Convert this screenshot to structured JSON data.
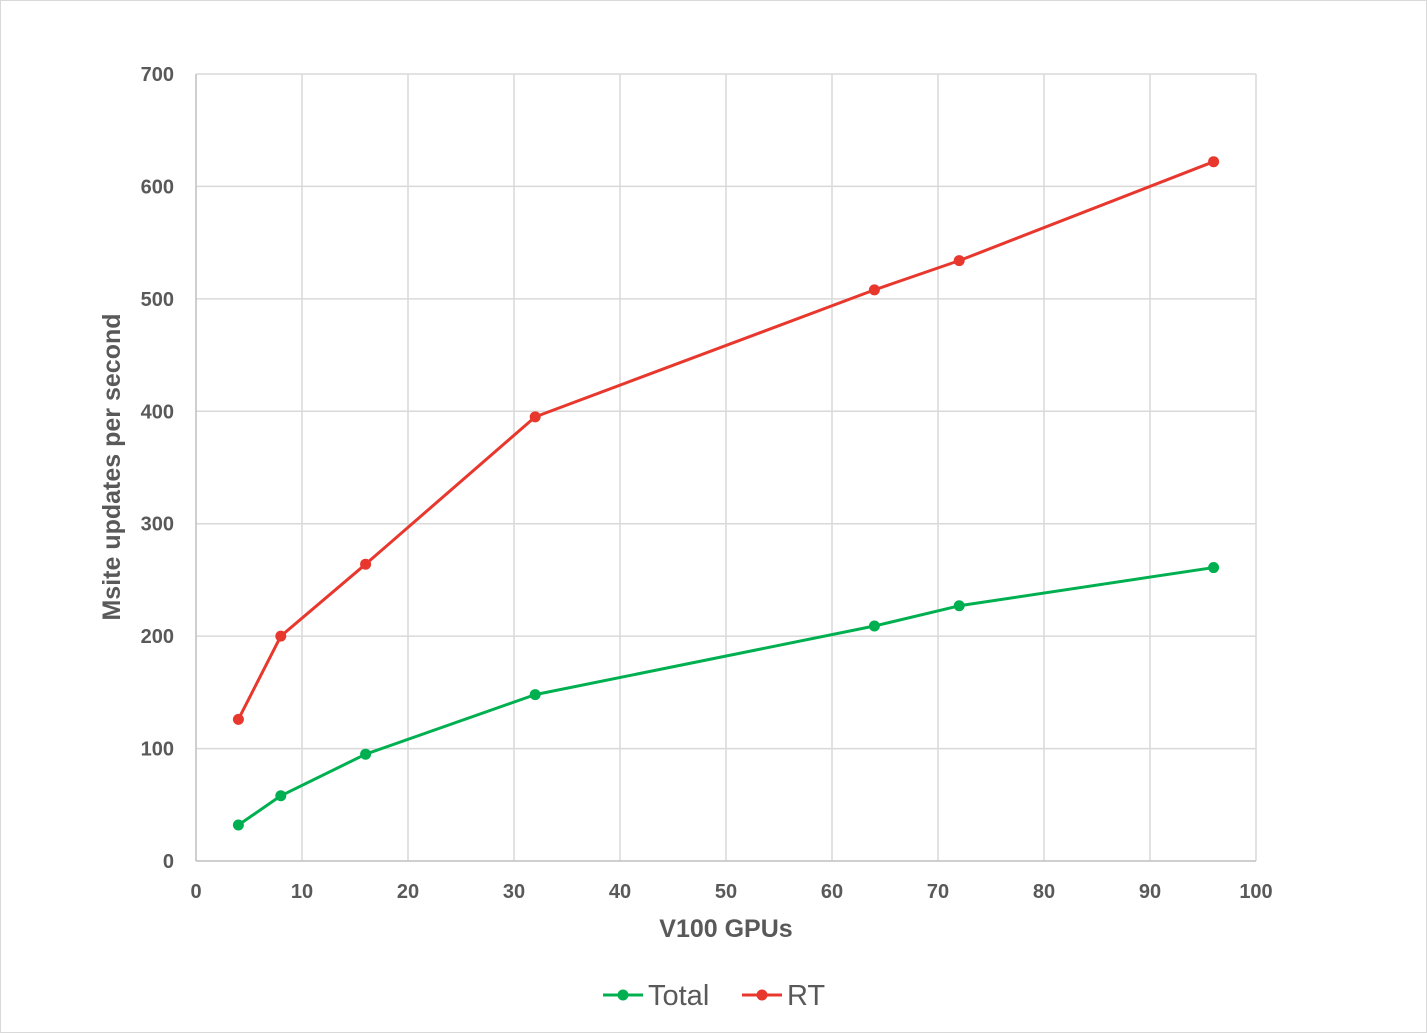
{
  "chart_data": {
    "type": "line",
    "title": "",
    "xlabel": "V100 GPUs",
    "ylabel": "Msite updates per second",
    "xlim": [
      0,
      100
    ],
    "ylim": [
      0,
      700
    ],
    "x_ticks": [
      0,
      10,
      20,
      30,
      40,
      50,
      60,
      70,
      80,
      90,
      100
    ],
    "y_ticks": [
      0,
      100,
      200,
      300,
      400,
      500,
      600,
      700
    ],
    "grid": true,
    "legend_position": "bottom",
    "x": [
      4,
      8,
      16,
      32,
      64,
      72,
      96
    ],
    "series": [
      {
        "name": "Total",
        "color": "#00b050",
        "values": [
          32,
          58,
          95,
          148,
          209,
          227,
          261
        ]
      },
      {
        "name": "RT",
        "color": "#e8382e",
        "values": [
          126,
          200,
          264,
          395,
          508,
          534,
          622
        ]
      }
    ]
  }
}
